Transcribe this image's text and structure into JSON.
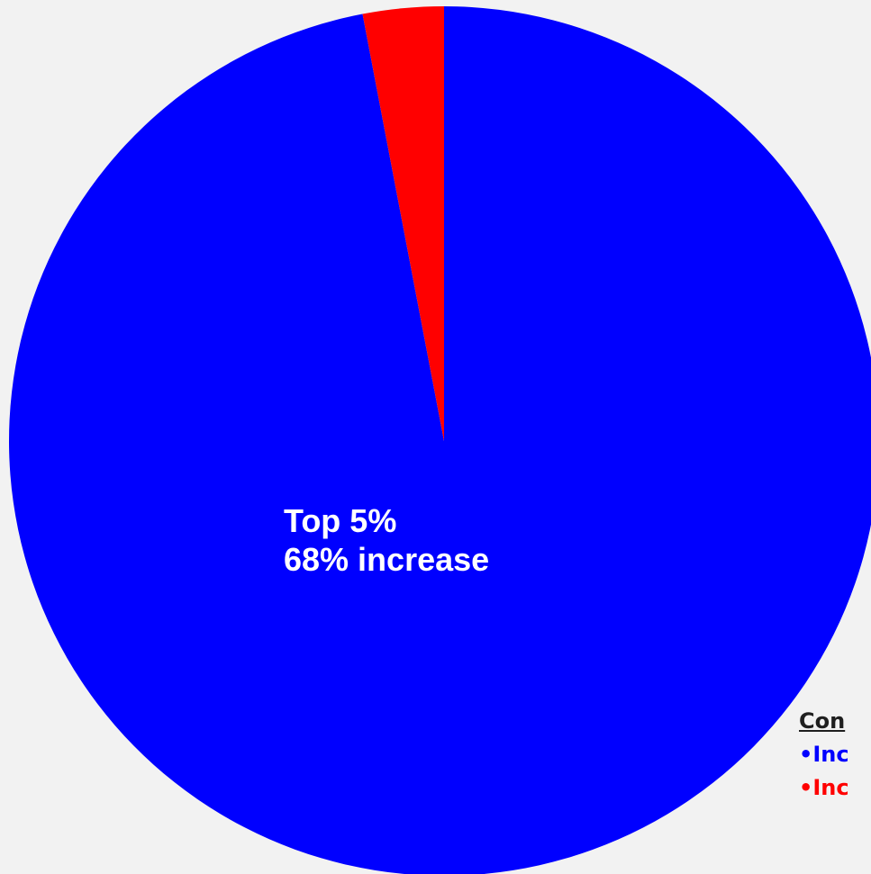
{
  "chart_data": {
    "type": "pie",
    "slices": [
      {
        "name": "Top 5%",
        "value": 97,
        "color": "#0000ff"
      },
      {
        "name": "",
        "value": 3,
        "color": "#ff0000"
      }
    ],
    "slice_label": {
      "line1": "Top 5%",
      "line2": "68% increase"
    },
    "legend": {
      "title": "Con",
      "items": [
        {
          "text": "•Inc",
          "color": "#0000ff"
        },
        {
          "text": "•Inc",
          "color": "#ff0000"
        }
      ]
    }
  }
}
